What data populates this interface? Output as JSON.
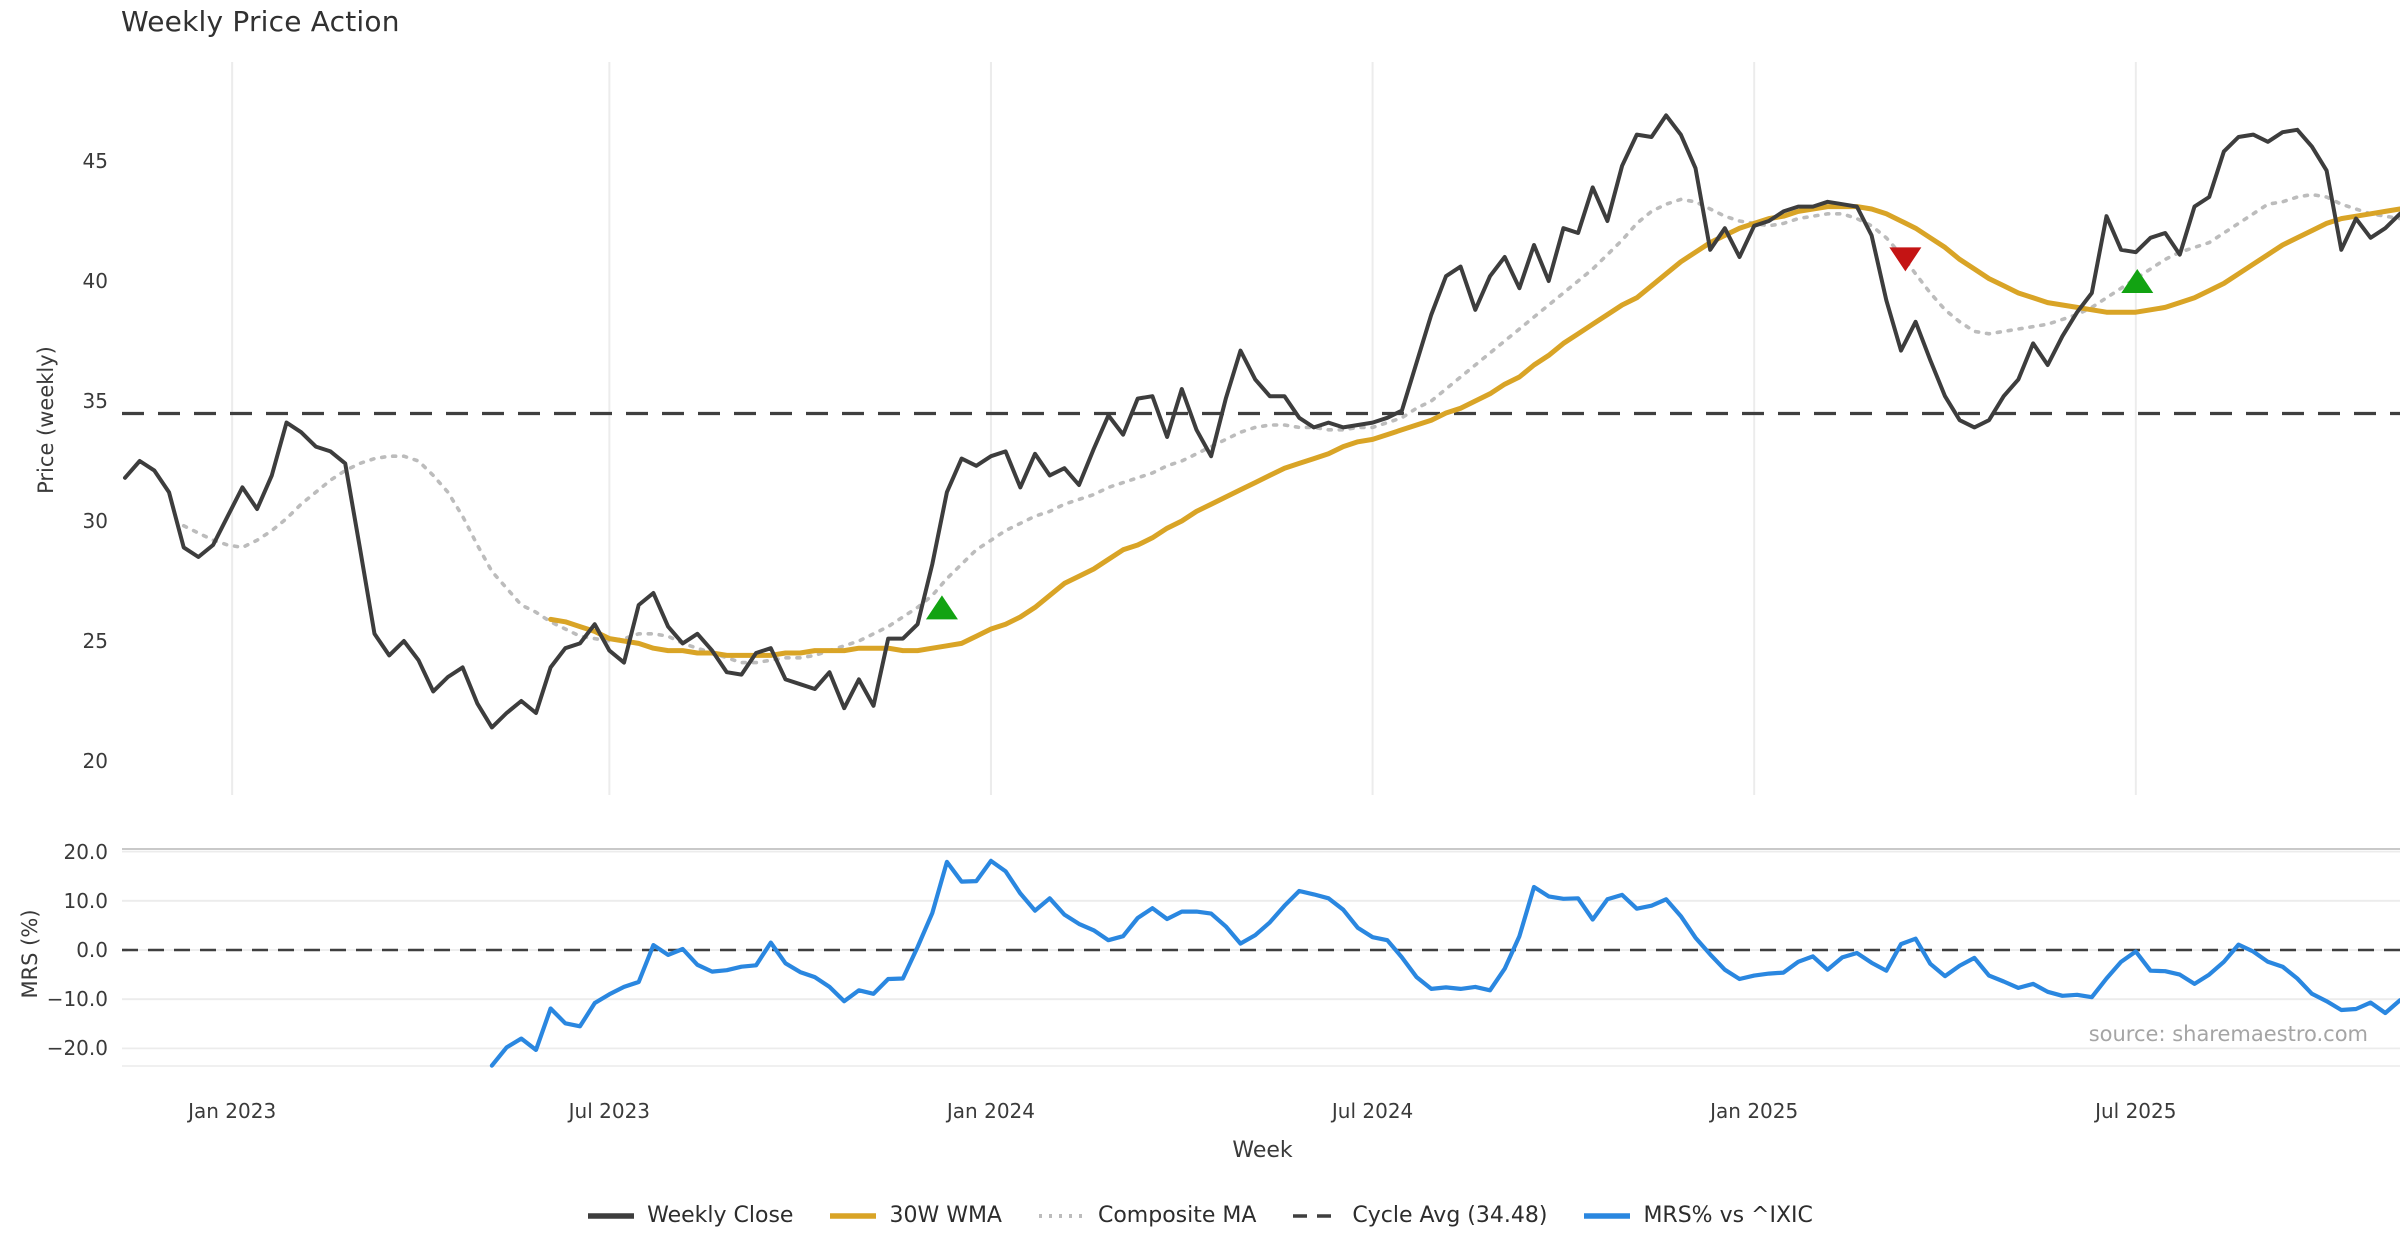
{
  "title": "Weekly Price Action",
  "source_text": "source: sharemaestro.com",
  "colors": {
    "close": "#3d3d3d",
    "wma": "#d9a426",
    "composite": "#bcbcbc",
    "cycle": "#3f3f3f",
    "mrs": "#2a87e0",
    "buy_marker": "#12a312",
    "sell_marker": "#c41414",
    "grid": "#ececec",
    "panel_edge": "#c9c9c9",
    "tick_text": "#3a3a3a"
  },
  "legend": [
    {
      "label": "Weekly Close",
      "color": "#3d3d3d",
      "style": "solid"
    },
    {
      "label": "30W WMA",
      "color": "#d9a426",
      "style": "solid"
    },
    {
      "label": "Composite MA",
      "color": "#bcbcbc",
      "style": "dotted"
    },
    {
      "label": "Cycle Avg (34.48)",
      "color": "#3f3f3f",
      "style": "dashed"
    },
    {
      "label": "MRS% vs ^IXIC",
      "color": "#2a87e0",
      "style": "solid"
    }
  ],
  "chart_data": [
    {
      "type": "line",
      "title": "Weekly Price Action",
      "xlabel": "Week",
      "ylabel": "Price (weekly)",
      "grid": "vertical-only",
      "legend_position": "bottom-center",
      "ylim": [
        18.7,
        49.1
      ],
      "yticks": [
        {
          "v": 45,
          "label": "45"
        },
        {
          "v": 40,
          "label": "40"
        },
        {
          "v": 35,
          "label": "35"
        },
        {
          "v": 30,
          "label": "30"
        },
        {
          "v": 25,
          "label": "25"
        },
        {
          "v": 20,
          "label": "20"
        }
      ],
      "xticks": [
        {
          "week": 7.3,
          "label": "Jan 2023"
        },
        {
          "week": 33,
          "label": "Jul 2023"
        },
        {
          "week": 59,
          "label": "Jan 2024"
        },
        {
          "week": 85,
          "label": "Jul 2024"
        },
        {
          "week": 111,
          "label": "Jan 2025"
        },
        {
          "week": 137,
          "label": "Jul 2025"
        }
      ],
      "n_weeks": 156,
      "cycle_avg": 34.48,
      "series": [
        {
          "name": "Weekly Close",
          "style": "solid",
          "start_week": 0,
          "values": [
            31.8,
            32.5,
            32.1,
            31.2,
            28.9,
            28.5,
            29.0,
            30.2,
            31.4,
            30.5,
            31.9,
            34.1,
            33.7,
            33.1,
            32.9,
            32.4,
            28.9,
            25.3,
            24.4,
            25.0,
            24.2,
            22.9,
            23.5,
            23.9,
            22.4,
            21.4,
            22.0,
            22.5,
            22.0,
            23.9,
            24.7,
            24.9,
            25.7,
            24.6,
            24.1,
            26.5,
            27.0,
            25.6,
            24.9,
            25.3,
            24.6,
            23.7,
            23.6,
            24.5,
            24.7,
            23.4,
            23.2,
            23.0,
            23.7,
            22.2,
            23.4,
            22.3,
            25.1,
            25.1,
            25.7,
            28.2,
            31.2,
            32.6,
            32.3,
            32.7,
            32.9,
            31.4,
            32.8,
            31.9,
            32.2,
            31.5,
            33.0,
            34.4,
            33.6,
            35.1,
            35.2,
            33.5,
            35.5,
            33.8,
            32.7,
            35.1,
            37.1,
            35.9,
            35.2,
            35.2,
            34.3,
            33.9,
            34.1,
            33.9,
            34.0,
            34.1,
            34.3,
            34.6,
            36.6,
            38.6,
            40.2,
            40.6,
            38.8,
            40.2,
            41.0,
            39.7,
            41.5,
            40.0,
            42.2,
            42.0,
            43.9,
            42.5,
            44.8,
            46.1,
            46.0,
            46.9,
            46.1,
            44.7,
            41.3,
            42.2,
            41.0,
            42.3,
            42.5,
            42.9,
            43.1,
            43.1,
            43.3,
            43.2,
            43.1,
            41.9,
            39.2,
            37.1,
            38.3,
            36.7,
            35.2,
            34.2,
            33.9,
            34.2,
            35.2,
            35.9,
            37.4,
            36.5,
            37.7,
            38.7,
            39.5,
            42.7,
            41.3,
            41.2,
            41.8,
            42.0,
            41.1,
            43.1,
            43.5,
            45.4,
            46.0,
            46.1,
            45.8,
            46.2,
            46.3,
            45.6,
            44.6,
            41.3,
            42.6,
            41.8,
            42.2,
            42.8
          ]
        },
        {
          "name": "30W WMA",
          "style": "solid",
          "start_week": 29,
          "values": [
            25.9,
            25.8,
            25.6,
            25.4,
            25.1,
            25.0,
            24.9,
            24.7,
            24.6,
            24.6,
            24.5,
            24.5,
            24.4,
            24.4,
            24.4,
            24.4,
            24.5,
            24.5,
            24.6,
            24.6,
            24.6,
            24.7,
            24.7,
            24.7,
            24.6,
            24.6,
            24.7,
            24.8,
            24.9,
            25.2,
            25.5,
            25.7,
            26.0,
            26.4,
            26.9,
            27.4,
            27.7,
            28.0,
            28.4,
            28.8,
            29.0,
            29.3,
            29.7,
            30.0,
            30.4,
            30.7,
            31.0,
            31.3,
            31.6,
            31.9,
            32.2,
            32.4,
            32.6,
            32.8,
            33.1,
            33.3,
            33.4,
            33.6,
            33.8,
            34.0,
            34.2,
            34.5,
            34.7,
            35.0,
            35.3,
            35.7,
            36.0,
            36.5,
            36.9,
            37.4,
            37.8,
            38.2,
            38.6,
            39.0,
            39.3,
            39.8,
            40.3,
            40.8,
            41.2,
            41.6,
            41.9,
            42.2,
            42.4,
            42.6,
            42.7,
            42.9,
            43.0,
            43.1,
            43.1,
            43.1,
            43.0,
            42.8,
            42.5,
            42.2,
            41.8,
            41.4,
            40.9,
            40.5,
            40.1,
            39.8,
            39.5,
            39.3,
            39.1,
            39.0,
            38.9,
            38.8,
            38.7,
            38.7,
            38.7,
            38.8,
            38.9,
            39.1,
            39.3,
            39.6,
            39.9,
            40.3,
            40.7,
            41.1,
            41.5,
            41.8,
            42.1,
            42.4,
            42.6,
            42.7,
            42.8,
            42.9,
            43.0
          ]
        },
        {
          "name": "Composite MA",
          "style": "dotted",
          "start_week": 4,
          "values": [
            29.8,
            29.5,
            29.2,
            29.0,
            28.9,
            29.2,
            29.6,
            30.1,
            30.7,
            31.2,
            31.7,
            32.1,
            32.4,
            32.6,
            32.7,
            32.7,
            32.5,
            31.9,
            31.2,
            30.2,
            29.0,
            27.9,
            27.2,
            26.5,
            26.2,
            25.8,
            25.5,
            25.2,
            25.1,
            25.0,
            25.1,
            25.3,
            25.3,
            25.2,
            24.9,
            24.7,
            24.5,
            24.3,
            24.1,
            24.1,
            24.2,
            24.3,
            24.3,
            24.4,
            24.6,
            24.8,
            25.0,
            25.3,
            25.6,
            26.0,
            26.4,
            26.9,
            27.6,
            28.2,
            28.8,
            29.2,
            29.6,
            29.9,
            30.2,
            30.4,
            30.7,
            30.9,
            31.1,
            31.4,
            31.6,
            31.8,
            32.0,
            32.3,
            32.5,
            32.8,
            33.1,
            33.4,
            33.7,
            33.9,
            34.0,
            34.0,
            33.9,
            33.9,
            33.8,
            33.8,
            33.9,
            33.9,
            34.1,
            34.3,
            34.7,
            35.0,
            35.5,
            36.0,
            36.5,
            37.0,
            37.5,
            38.0,
            38.5,
            39.0,
            39.5,
            40.0,
            40.5,
            41.1,
            41.7,
            42.4,
            42.9,
            43.2,
            43.4,
            43.3,
            43.0,
            42.7,
            42.5,
            42.4,
            42.3,
            42.4,
            42.6,
            42.7,
            42.8,
            42.8,
            42.6,
            42.3,
            41.8,
            41.1,
            40.3,
            39.5,
            38.8,
            38.3,
            37.9,
            37.8,
            37.9,
            38.0,
            38.1,
            38.2,
            38.4,
            38.6,
            38.9,
            39.3,
            39.7,
            40.1,
            40.5,
            40.9,
            41.2,
            41.4,
            41.6,
            42.0,
            42.4,
            42.8,
            43.2,
            43.3,
            43.5,
            43.6,
            43.5,
            43.2,
            43.0,
            42.8,
            42.7,
            42.6
          ]
        },
        {
          "name": "Cycle Avg",
          "style": "dashed",
          "constant": 34.48
        }
      ],
      "markers": [
        {
          "shape": "triangle-up",
          "week": 55.66,
          "value": 26.4,
          "color": "#12a312",
          "meaning": "buy-signal"
        },
        {
          "shape": "triangle-down",
          "week": 121.3,
          "value": 40.9,
          "color": "#c41414",
          "meaning": "sell-signal"
        },
        {
          "shape": "triangle-up",
          "week": 137.1,
          "value": 40.0,
          "color": "#12a312",
          "meaning": "buy-signal"
        }
      ]
    },
    {
      "type": "line",
      "xlabel": "Week",
      "ylabel": "MRS (%)",
      "grid": "horizontal-only",
      "ylim": [
        -23.9,
        20.9
      ],
      "yticks": [
        {
          "v": 20,
          "label": "20.0"
        },
        {
          "v": 10,
          "label": "10.0"
        },
        {
          "v": 0,
          "label": "0.0"
        },
        {
          "v": -10,
          "label": "−10.0"
        },
        {
          "v": -20,
          "label": "−20.0"
        }
      ],
      "zero_dashed_line": 0.0,
      "series": [
        {
          "name": "MRS% vs ^IXIC",
          "style": "solid",
          "start_week": 25,
          "values": [
            -23.5,
            -19.8,
            -18.0,
            -20.3,
            -11.9,
            -14.9,
            -15.5,
            -10.8,
            -9.0,
            -7.5,
            -6.5,
            1.0,
            -1.0,
            0.2,
            -3.0,
            -4.4,
            -4.1,
            -3.4,
            -3.1,
            1.5,
            -2.7,
            -4.5,
            -5.5,
            -7.5,
            -10.4,
            -8.2,
            -8.9,
            -5.9,
            -5.8,
            0.6,
            7.5,
            17.9,
            13.9,
            14.0,
            18.1,
            16.0,
            11.5,
            8.0,
            10.5,
            7.2,
            5.3,
            4.0,
            2.0,
            2.8,
            6.5,
            8.5,
            6.3,
            7.8,
            7.8,
            7.4,
            4.8,
            1.3,
            3.0,
            5.6,
            9.0,
            12.0,
            11.3,
            10.5,
            8.2,
            4.5,
            2.6,
            2.0,
            -1.5,
            -5.5,
            -7.9,
            -7.6,
            -7.9,
            -7.5,
            -8.2,
            -3.8,
            2.8,
            12.8,
            10.9,
            10.4,
            10.5,
            6.2,
            10.3,
            11.2,
            8.4,
            9.0,
            10.3,
            6.9,
            2.5,
            -0.9,
            -4.0,
            -5.9,
            -5.2,
            -4.8,
            -4.6,
            -2.4,
            -1.3,
            -4.0,
            -1.5,
            -0.6,
            -2.6,
            -4.2,
            1.2,
            2.3,
            -2.8,
            -5.3,
            -3.2,
            -1.6,
            -5.2,
            -6.4,
            -7.7,
            -6.9,
            -8.5,
            -9.3,
            -9.1,
            -9.6,
            -5.8,
            -2.4,
            -0.3,
            -4.2,
            -4.3,
            -5.0,
            -6.9,
            -5.0,
            -2.4,
            1.1,
            -0.3,
            -2.4,
            -3.4,
            -5.8,
            -8.9,
            -10.4,
            -12.2,
            -12.0,
            -10.7,
            -12.8,
            -10.2
          ]
        }
      ]
    }
  ]
}
